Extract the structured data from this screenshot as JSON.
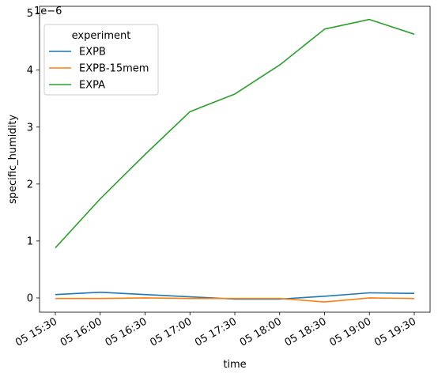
{
  "chart_data": {
    "type": "line",
    "xlabel": "time",
    "ylabel": "specific_humidity",
    "y_offset_label": "1e−6",
    "x": [
      "05 15:30",
      "05 16:00",
      "05 16:30",
      "05 17:00",
      "05 17:30",
      "05 18:00",
      "05 18:30",
      "05 19:00",
      "05 19:30"
    ],
    "yticks": [
      0,
      1,
      2,
      3,
      4,
      5
    ],
    "ylim": [
      -0.25,
      5.12
    ],
    "legend": {
      "title": "experiment",
      "placement": "top-left"
    },
    "grid": false,
    "series": [
      {
        "name": "EXPB",
        "color": "#1f77b4",
        "values": [
          0.06,
          0.1,
          0.06,
          0.02,
          -0.02,
          -0.02,
          0.03,
          0.09,
          0.08
        ]
      },
      {
        "name": "EXPB-15mem",
        "color": "#ff7f0e",
        "values": [
          -0.01,
          -0.01,
          0.0,
          -0.01,
          -0.01,
          -0.01,
          -0.07,
          0.0,
          -0.01
        ]
      },
      {
        "name": "EXPA",
        "color": "#2ca02c",
        "values": [
          0.88,
          1.74,
          2.52,
          3.27,
          3.58,
          4.09,
          4.72,
          4.89,
          4.63
        ]
      }
    ]
  }
}
